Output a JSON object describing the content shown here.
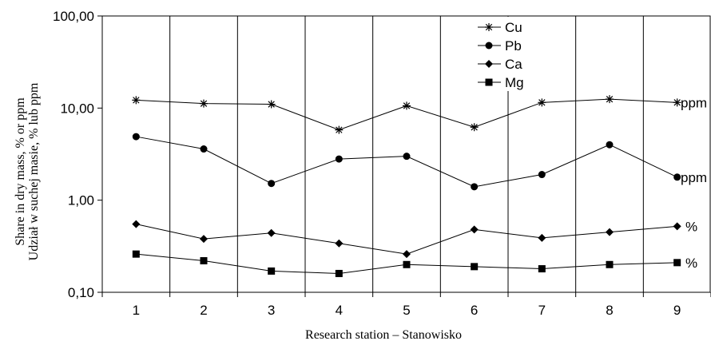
{
  "chart_data": {
    "type": "line",
    "yscale": "log",
    "ylim": [
      0.1,
      100
    ],
    "yticks": [
      "0,10",
      "1,00",
      "10,00",
      "100,00"
    ],
    "ytick_values": [
      0.1,
      1,
      10,
      100
    ],
    "categories": [
      "1",
      "2",
      "3",
      "4",
      "5",
      "6",
      "7",
      "8",
      "9"
    ],
    "xlabel": "Research station – Stanowisko",
    "ylabel_line1": "Share in dry mass, % or ppm",
    "ylabel_line2": "Udział w suchej masie, % lub ppm",
    "grid": "vertical",
    "legend_position": "top-center",
    "series": [
      {
        "name": "Cu",
        "marker": "asterisk",
        "end_label": "ppm",
        "values": [
          12.2,
          11.2,
          11.0,
          5.8,
          10.6,
          6.2,
          11.5,
          12.5,
          11.5
        ]
      },
      {
        "name": "Pb",
        "marker": "circle",
        "end_label": "ppm",
        "values": [
          4.9,
          3.6,
          1.52,
          2.8,
          3.0,
          1.4,
          1.9,
          4.0,
          1.78
        ]
      },
      {
        "name": "Ca",
        "marker": "diamond",
        "end_label": "%",
        "values": [
          0.55,
          0.38,
          0.44,
          0.34,
          0.26,
          0.48,
          0.39,
          0.45,
          0.52
        ]
      },
      {
        "name": "Mg",
        "marker": "square",
        "end_label": "%",
        "values": [
          0.26,
          0.22,
          0.17,
          0.16,
          0.2,
          0.19,
          0.18,
          0.2,
          0.21
        ]
      }
    ]
  }
}
